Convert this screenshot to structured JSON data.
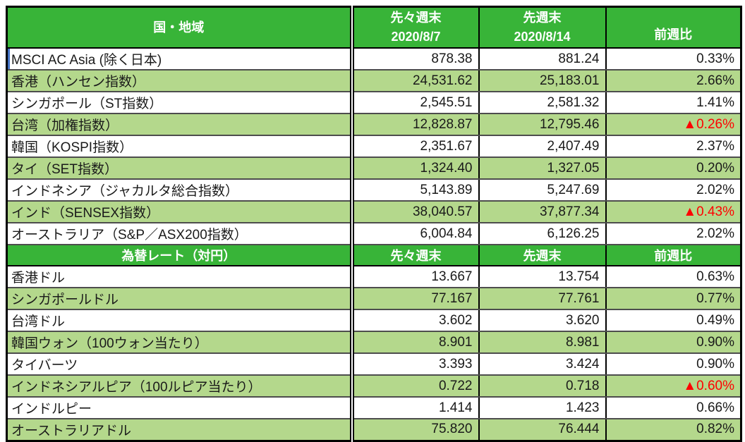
{
  "colors": {
    "header_green": "#38B438",
    "row_green": "#B4D88C",
    "row_white": "#FFFFFF",
    "row_divider": "#4D4D4D",
    "border_black": "#000000",
    "negative_red": "#FF0000",
    "selection_blue": "#4472C4",
    "header_text": "#FFFFFF"
  },
  "indices": {
    "header": {
      "region": "国・地域",
      "prev2_label": "先々週末",
      "prev2_date": "2020/8/7",
      "prev1_label": "先週末",
      "prev1_date": "2020/8/14",
      "change": "前週比"
    },
    "rows": [
      {
        "label": "MSCI AC Asia (除く日本)",
        "prev2": "878.38",
        "prev1": "881.24",
        "change": "0.33%",
        "negative": false
      },
      {
        "label": "香港（ハンセン指数）",
        "prev2": "24,531.62",
        "prev1": "25,183.01",
        "change": "2.66%",
        "negative": false
      },
      {
        "label": "シンガポール（ST指数）",
        "prev2": "2,545.51",
        "prev1": "2,581.32",
        "change": "1.41%",
        "negative": false
      },
      {
        "label": "台湾（加権指数）",
        "prev2": "12,828.87",
        "prev1": "12,795.46",
        "change": "▲0.26%",
        "negative": true
      },
      {
        "label": "韓国（KOSPI指数）",
        "prev2": "2,351.67",
        "prev1": "2,407.49",
        "change": "2.37%",
        "negative": false
      },
      {
        "label": "タイ（SET指数）",
        "prev2": "1,324.40",
        "prev1": "1,327.05",
        "change": "0.20%",
        "negative": false
      },
      {
        "label": "インドネシア（ジャカルタ総合指数）",
        "prev2": "5,143.89",
        "prev1": "5,247.69",
        "change": "2.02%",
        "negative": false
      },
      {
        "label": "インド（SENSEX指数）",
        "prev2": "38,040.57",
        "prev1": "37,877.34",
        "change": "▲0.43%",
        "negative": true
      },
      {
        "label": "オーストラリア（S&P／ASX200指数）",
        "prev2": "6,004.84",
        "prev1": "6,126.25",
        "change": "2.02%",
        "negative": false
      }
    ]
  },
  "fx": {
    "header": {
      "title": "為替レート（対円）",
      "prev2": "先々週末",
      "prev1": "先週末",
      "change": "前週比"
    },
    "rows": [
      {
        "label": "香港ドル",
        "prev2": "13.667",
        "prev1": "13.754",
        "change": "0.63%",
        "negative": false
      },
      {
        "label": "シンガポールドル",
        "prev2": "77.167",
        "prev1": "77.761",
        "change": "0.77%",
        "negative": false
      },
      {
        "label": "台湾ドル",
        "prev2": "3.602",
        "prev1": "3.620",
        "change": "0.49%",
        "negative": false
      },
      {
        "label": "韓国ウォン（100ウォン当たり）",
        "prev2": "8.901",
        "prev1": "8.981",
        "change": "0.90%",
        "negative": false
      },
      {
        "label": "タイバーツ",
        "prev2": "3.393",
        "prev1": "3.424",
        "change": "0.90%",
        "negative": false
      },
      {
        "label": "インドネシアルピア（100ルピア当たり）",
        "prev2": "0.722",
        "prev1": "0.718",
        "change": "▲0.60%",
        "negative": true
      },
      {
        "label": "インドルピー",
        "prev2": "1.414",
        "prev1": "1.423",
        "change": "0.66%",
        "negative": false
      },
      {
        "label": "オーストラリアドル",
        "prev2": "75.820",
        "prev1": "76.444",
        "change": "0.82%",
        "negative": false
      }
    ]
  },
  "chart_data": [
    {
      "type": "table",
      "title": "国・地域",
      "columns": [
        "国・地域",
        "先々週末 2020/8/7",
        "先週末 2020/8/14",
        "前週比"
      ],
      "rows": [
        [
          "MSCI AC Asia (除く日本)",
          878.38,
          881.24,
          "0.33%"
        ],
        [
          "香港（ハンセン指数）",
          24531.62,
          25183.01,
          "2.66%"
        ],
        [
          "シンガポール（ST指数）",
          2545.51,
          2581.32,
          "1.41%"
        ],
        [
          "台湾（加権指数）",
          12828.87,
          12795.46,
          "▲0.26%"
        ],
        [
          "韓国（KOSPI指数）",
          2351.67,
          2407.49,
          "2.37%"
        ],
        [
          "タイ（SET指数）",
          1324.4,
          1327.05,
          "0.20%"
        ],
        [
          "インドネシア（ジャカルタ総合指数）",
          5143.89,
          5247.69,
          "2.02%"
        ],
        [
          "インド（SENSEX指数）",
          38040.57,
          37877.34,
          "▲0.43%"
        ],
        [
          "オーストラリア（S&P／ASX200指数）",
          6004.84,
          6126.25,
          "2.02%"
        ]
      ]
    },
    {
      "type": "table",
      "title": "為替レート（対円）",
      "columns": [
        "為替レート（対円）",
        "先々週末",
        "先週末",
        "前週比"
      ],
      "rows": [
        [
          "香港ドル",
          13.667,
          13.754,
          "0.63%"
        ],
        [
          "シンガポールドル",
          77.167,
          77.761,
          "0.77%"
        ],
        [
          "台湾ドル",
          3.602,
          3.62,
          "0.49%"
        ],
        [
          "韓国ウォン（100ウォン当たり）",
          8.901,
          8.981,
          "0.90%"
        ],
        [
          "タイバーツ",
          3.393,
          3.424,
          "0.90%"
        ],
        [
          "インドネシアルピア（100ルピア当たり）",
          0.722,
          0.718,
          "▲0.60%"
        ],
        [
          "インドルピー",
          1.414,
          1.423,
          "0.66%"
        ],
        [
          "オーストラリアドル",
          75.82,
          76.444,
          "0.82%"
        ]
      ]
    }
  ]
}
